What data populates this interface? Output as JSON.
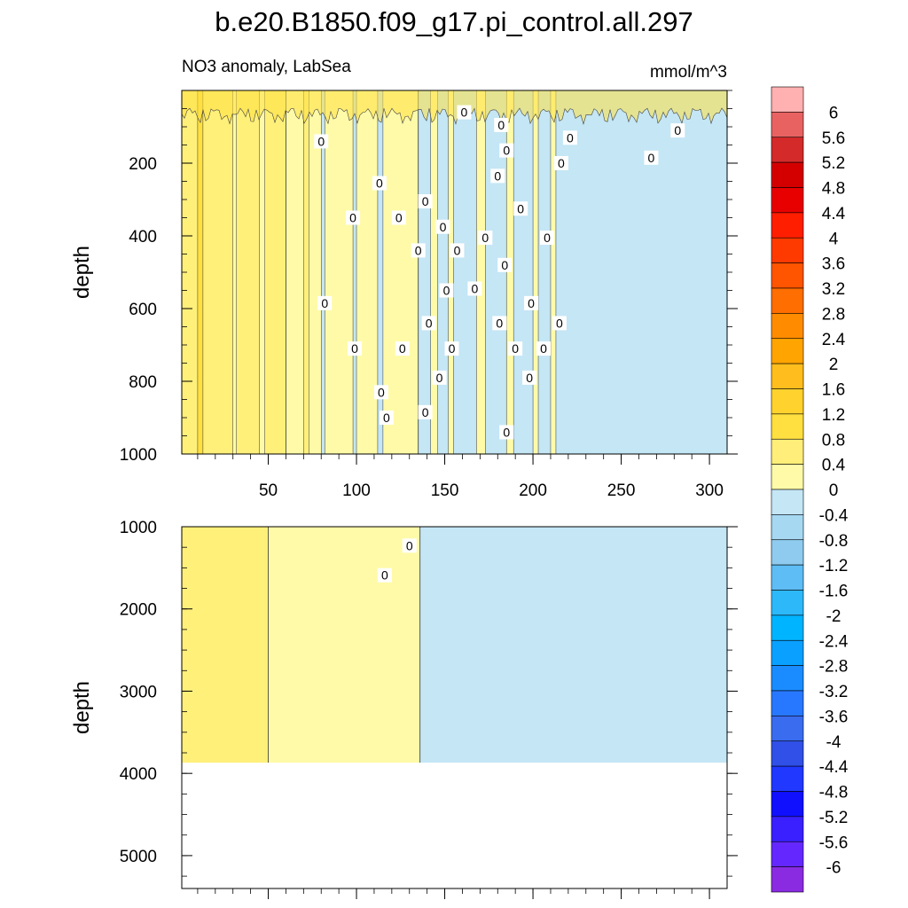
{
  "chart_data": {
    "type": "heatmap",
    "title": "b.e20.B1850.f09_g17.pi_control.all.297",
    "subtitle_left": "NO3 anomaly, LabSea",
    "subtitle_right": "mmol/m^3",
    "x_range": [
      1,
      310
    ],
    "x_ticks": [
      50,
      100,
      150,
      200,
      250,
      300
    ],
    "x_tick_labels": [
      "50",
      "100",
      "150",
      "200",
      "250",
      "300"
    ],
    "contour_label": "0",
    "panels": [
      {
        "name": "upper",
        "ylabel": "depth",
        "y_range": [
          0,
          1000
        ],
        "y_ticks": [
          200,
          400,
          600,
          800,
          1000
        ],
        "y_tick_labels": [
          "200",
          "400",
          "600",
          "800",
          "1000"
        ],
        "regions": [
          {
            "x0": 1,
            "x1": 60,
            "level": 0.4
          },
          {
            "x0": 60,
            "x1": 135,
            "level": 0
          },
          {
            "x0": 135,
            "x1": 310,
            "level": -0.4
          }
        ],
        "streaks": [
          {
            "x": 10,
            "w": 3,
            "level": 0.8
          },
          {
            "x": 30,
            "w": 2,
            "level": 0
          },
          {
            "x": 45,
            "w": 3,
            "level": 0
          },
          {
            "x": 70,
            "w": 3,
            "level": 0.4
          },
          {
            "x": 80,
            "w": 2,
            "level": -0.4
          },
          {
            "x": 98,
            "w": 2,
            "level": -0.4
          },
          {
            "x": 112,
            "w": 3,
            "level": -0.4
          },
          {
            "x": 142,
            "w": 4,
            "level": 0
          },
          {
            "x": 152,
            "w": 3,
            "level": 0
          },
          {
            "x": 168,
            "w": 5,
            "level": 0
          },
          {
            "x": 185,
            "w": 4,
            "level": 0
          },
          {
            "x": 200,
            "w": 3,
            "level": 0
          },
          {
            "x": 210,
            "w": 3,
            "level": 0
          }
        ],
        "contour_labels": [
          {
            "x": 161,
            "y": 60
          },
          {
            "x": 182,
            "y": 95
          },
          {
            "x": 80,
            "y": 140
          },
          {
            "x": 185,
            "y": 165
          },
          {
            "x": 221,
            "y": 130
          },
          {
            "x": 216,
            "y": 200
          },
          {
            "x": 282,
            "y": 110
          },
          {
            "x": 267,
            "y": 185
          },
          {
            "x": 113,
            "y": 255
          },
          {
            "x": 180,
            "y": 235
          },
          {
            "x": 139,
            "y": 305
          },
          {
            "x": 193,
            "y": 325
          },
          {
            "x": 98,
            "y": 350
          },
          {
            "x": 124,
            "y": 350
          },
          {
            "x": 149,
            "y": 375
          },
          {
            "x": 173,
            "y": 405
          },
          {
            "x": 208,
            "y": 405
          },
          {
            "x": 135,
            "y": 440
          },
          {
            "x": 157,
            "y": 440
          },
          {
            "x": 184,
            "y": 480
          },
          {
            "x": 151,
            "y": 550
          },
          {
            "x": 167,
            "y": 545
          },
          {
            "x": 82,
            "y": 585
          },
          {
            "x": 199,
            "y": 585
          },
          {
            "x": 141,
            "y": 640
          },
          {
            "x": 181,
            "y": 640
          },
          {
            "x": 215,
            "y": 640
          },
          {
            "x": 99,
            "y": 710
          },
          {
            "x": 126,
            "y": 710
          },
          {
            "x": 154,
            "y": 710
          },
          {
            "x": 190,
            "y": 710
          },
          {
            "x": 206,
            "y": 710
          },
          {
            "x": 147,
            "y": 790
          },
          {
            "x": 198,
            "y": 790
          },
          {
            "x": 114,
            "y": 830
          },
          {
            "x": 117,
            "y": 900
          },
          {
            "x": 139,
            "y": 885
          },
          {
            "x": 185,
            "y": 940
          }
        ]
      },
      {
        "name": "lower",
        "ylabel": "depth",
        "y_range": [
          1000,
          5400
        ],
        "y_ticks": [
          1000,
          2000,
          3000,
          4000,
          5000
        ],
        "y_tick_labels": [
          "1000",
          "2000",
          "3000",
          "4000",
          "5000"
        ],
        "data_bottom": 3870,
        "regions": [
          {
            "x0": 1,
            "x1": 50,
            "level": 0.4
          },
          {
            "x0": 50,
            "x1": 136,
            "level": 0
          },
          {
            "x0": 136,
            "x1": 310,
            "level": -0.4
          }
        ],
        "contour_labels": [
          {
            "x": 130,
            "y": 1230
          },
          {
            "x": 116,
            "y": 1590
          }
        ]
      }
    ],
    "colorbar": {
      "labels": [
        "6",
        "5.6",
        "5.2",
        "4.8",
        "4.4",
        "4",
        "3.6",
        "3.2",
        "2.8",
        "2.4",
        "2",
        "1.6",
        "1.2",
        "0.8",
        "0.4",
        "0",
        "-0.4",
        "-0.8",
        "-1.2",
        "-1.6",
        "-2",
        "-2.4",
        "-2.8",
        "-3.2",
        "-3.6",
        "-4",
        "-4.4",
        "-4.8",
        "-5.2",
        "-5.6",
        "-6"
      ],
      "colors": [
        "#ffb0b0",
        "#e86262",
        "#d42a2a",
        "#d40000",
        "#e80000",
        "#ff1e00",
        "#ff3a00",
        "#ff5400",
        "#ff6e00",
        "#ff8c00",
        "#ffa400",
        "#ffbe1e",
        "#ffd22e",
        "#ffe040",
        "#ffef7a",
        "#fffaa8",
        "#c4e6f5",
        "#a6d8f2",
        "#8ecbef",
        "#5ebdf5",
        "#2db8fa",
        "#00b4ff",
        "#0aa0ff",
        "#1a8cff",
        "#2878ff",
        "#3a6cf0",
        "#3050e8",
        "#2038ff",
        "#1010ff",
        "#3a20ff",
        "#6428ff",
        "#8a2be2"
      ]
    },
    "level_colors": {
      "0.8": "#ffe040",
      "0.4": "#fff07a",
      "0": "#fffaa8",
      "-0.4": "#c4e6f5",
      "-0.8": "#a6d8f2"
    }
  }
}
